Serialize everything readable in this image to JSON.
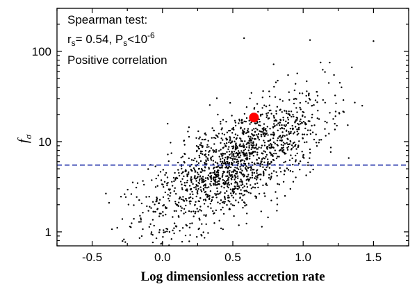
{
  "chart_data": {
    "type": "scatter",
    "title": "",
    "xlabel": "Log dimensionless accretion rate",
    "ylabel_main": "f",
    "ylabel_sub": "σ",
    "xlim": [
      -0.75,
      1.75
    ],
    "ylim": [
      0.7,
      300
    ],
    "yscale": "log",
    "grid": false,
    "x_ticks": [
      -0.5,
      0.0,
      0.5,
      1.0,
      1.5
    ],
    "x_tick_labels": [
      "-0.5",
      "0.0",
      "0.5",
      "1.0",
      "1.5"
    ],
    "y_ticks": [
      1,
      10,
      100
    ],
    "y_tick_labels": [
      "1",
      "10",
      "100"
    ],
    "annotation": {
      "line1": "Spearman test:",
      "line2_r": "r",
      "line2_r_sub": "s",
      "line2_mid": "= 0.54, P",
      "line2_p_sub": "s",
      "line2_lt": "<10",
      "line2_exp": "-6",
      "line3": "Positive correlation"
    },
    "reference_line": {
      "y": 5.5,
      "color": "#1f2fa8",
      "style": "dashed"
    },
    "highlight_point": {
      "x": 0.65,
      "y": 18.5,
      "color": "#ff0000"
    },
    "scatter_points": {
      "count": 1600,
      "seed": 12345,
      "x_mean": 0.52,
      "x_std": 0.32,
      "slope_log_y": 0.8,
      "intercept_log_y": 0.76,
      "scatter_log_y": 0.27,
      "color": "#000000",
      "outliers": [
        [
          1.5,
          130
        ],
        [
          0.58,
          140
        ],
        [
          -0.02,
          1.05
        ],
        [
          0.05,
          1.0
        ],
        [
          0.43,
          1.07
        ],
        [
          1.42,
          25
        ],
        [
          1.05,
          4.6
        ],
        [
          -0.38,
          2.1
        ]
      ]
    }
  }
}
